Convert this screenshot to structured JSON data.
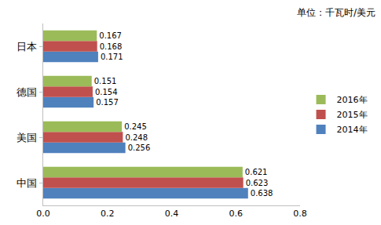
{
  "chart_data": {
    "type": "bar",
    "orientation": "horizontal",
    "categories": [
      "中国",
      "美国",
      "德国",
      "日本"
    ],
    "series": [
      {
        "name": "2014年",
        "color": "#4f81bd",
        "values": [
          0.638,
          0.256,
          0.157,
          0.171
        ]
      },
      {
        "name": "2015年",
        "color": "#c0504d",
        "values": [
          0.623,
          0.248,
          0.154,
          0.168
        ]
      },
      {
        "name": "2016年",
        "color": "#9bbb59",
        "values": [
          0.621,
          0.245,
          0.151,
          0.167
        ]
      }
    ],
    "xlim": [
      0,
      0.8
    ],
    "xticks": [
      {
        "value": 0,
        "label": "0.0"
      },
      0.2,
      0.4,
      0.6,
      0.8
    ],
    "annotations": [
      "单位：千瓦时/美元"
    ],
    "data_labels": true,
    "legend": "right",
    "grid": false
  }
}
